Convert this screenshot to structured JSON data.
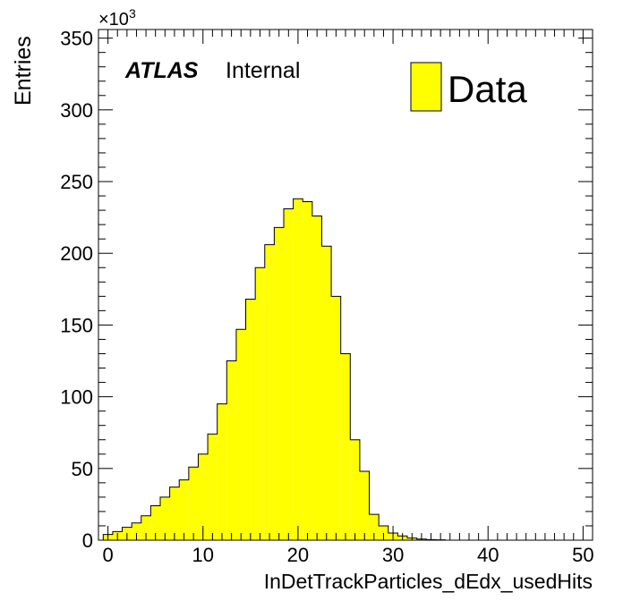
{
  "chart_data": {
    "type": "bar",
    "xlabel": "InDetTrackParticles_dEdx_usedHits",
    "ylabel": "Entries",
    "y_multiplier": "×10",
    "y_multiplier_exponent": "3",
    "xlim": [
      -1,
      51
    ],
    "ylim": [
      0,
      356
    ],
    "x_ticks": [
      0,
      10,
      20,
      30,
      40,
      50
    ],
    "y_ticks": [
      0,
      50,
      100,
      150,
      200,
      250,
      300,
      350
    ],
    "bin_edges": [
      -0.5,
      0.5,
      1.5,
      2.5,
      3.5,
      4.5,
      5.5,
      6.5,
      7.5,
      8.5,
      9.5,
      10.5,
      11.5,
      12.5,
      13.5,
      14.5,
      15.5,
      16.5,
      17.5,
      18.5,
      19.5,
      20.5,
      21.5,
      22.5,
      23.5,
      24.5,
      25.5,
      26.5,
      27.5,
      28.5,
      29.5,
      30.5,
      31.5,
      32.5,
      33.5,
      34.5,
      35.5
    ],
    "values": [
      4,
      6,
      9,
      12,
      17,
      24,
      30,
      37,
      42,
      51,
      60,
      74,
      95,
      125,
      147,
      168,
      190,
      206,
      218,
      231,
      238,
      236,
      226,
      205,
      170,
      130,
      70,
      48,
      18,
      10,
      5,
      3,
      1.5,
      0.8,
      0.4,
      0.2
    ],
    "legend": [
      {
        "label": "Data",
        "color": "#ffff00"
      }
    ],
    "legend_position": "top-right",
    "fill_color": "#ffff00",
    "edge_color": "#000000",
    "annotation": {
      "bold": "ATLAS",
      "normal": "Internal"
    }
  }
}
